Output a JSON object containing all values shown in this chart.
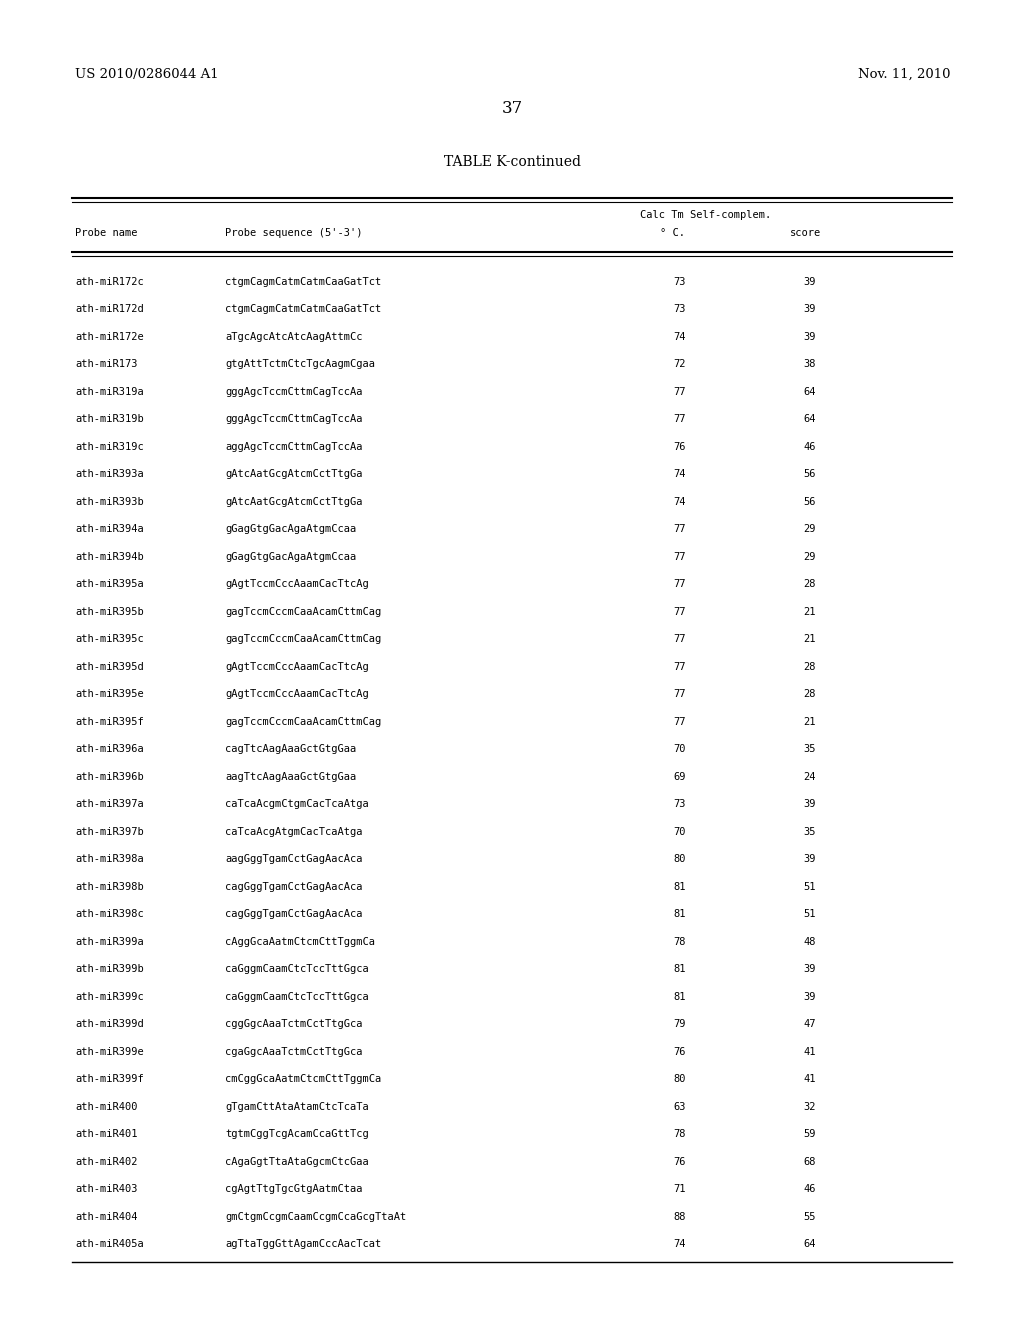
{
  "header_left": "US 2010/0286044 A1",
  "header_right": "Nov. 11, 2010",
  "page_number": "37",
  "table_title": "TABLE K-continued",
  "rows": [
    [
      "ath-miR172c",
      "ctgmCagmCatmCatmCaaGatTct",
      "73",
      "39"
    ],
    [
      "ath-miR172d",
      "ctgmCagmCatmCatmCaaGatTct",
      "73",
      "39"
    ],
    [
      "ath-miR172e",
      "aTgcAgcAtcAtcAagAttmCc",
      "74",
      "39"
    ],
    [
      "ath-miR173",
      "gtgAttTctmCtcTgcAagmCgaa",
      "72",
      "38"
    ],
    [
      "ath-miR319a",
      "gggAgcTccmCttmCagTccAa",
      "77",
      "64"
    ],
    [
      "ath-miR319b",
      "gggAgcTccmCttmCagTccAa",
      "77",
      "64"
    ],
    [
      "ath-miR319c",
      "aggAgcTccmCttmCagTccAa",
      "76",
      "46"
    ],
    [
      "ath-miR393a",
      "gAtcAatGcgAtcmCctTtgGa",
      "74",
      "56"
    ],
    [
      "ath-miR393b",
      "gAtcAatGcgAtcmCctTtgGa",
      "74",
      "56"
    ],
    [
      "ath-miR394a",
      "gGagGtgGacAgaAtgmCcaa",
      "77",
      "29"
    ],
    [
      "ath-miR394b",
      "gGagGtgGacAgaAtgmCcaa",
      "77",
      "29"
    ],
    [
      "ath-miR395a",
      "gAgtTccmCccAaamCacTtcAg",
      "77",
      "28"
    ],
    [
      "ath-miR395b",
      "gagTccmCccmCaaAcamCttmCag",
      "77",
      "21"
    ],
    [
      "ath-miR395c",
      "gagTccmCccmCaaAcamCttmCag",
      "77",
      "21"
    ],
    [
      "ath-miR395d",
      "gAgtTccmCccAaamCacTtcAg",
      "77",
      "28"
    ],
    [
      "ath-miR395e",
      "gAgtTccmCccAaamCacTtcAg",
      "77",
      "28"
    ],
    [
      "ath-miR395f",
      "gagTccmCccmCaaAcamCttmCag",
      "77",
      "21"
    ],
    [
      "ath-miR396a",
      "cagTtcAagAaaGctGtgGaa",
      "70",
      "35"
    ],
    [
      "ath-miR396b",
      "aagTtcAagAaaGctGtgGaa",
      "69",
      "24"
    ],
    [
      "ath-miR397a",
      "caTcaAcgmCtgmCacTcaAtga",
      "73",
      "39"
    ],
    [
      "ath-miR397b",
      "caTcaAcgAtgmCacTcaAtga",
      "70",
      "35"
    ],
    [
      "ath-miR398a",
      "aagGggTgamCctGagAacAca",
      "80",
      "39"
    ],
    [
      "ath-miR398b",
      "cagGggTgamCctGagAacAca",
      "81",
      "51"
    ],
    [
      "ath-miR398c",
      "cagGggTgamCctGagAacAca",
      "81",
      "51"
    ],
    [
      "ath-miR399a",
      "cAggGcaAatmCtcmCttTggmCa",
      "78",
      "48"
    ],
    [
      "ath-miR399b",
      "caGggmCaamCtcTccTttGgca",
      "81",
      "39"
    ],
    [
      "ath-miR399c",
      "caGggmCaamCtcTccTttGgca",
      "81",
      "39"
    ],
    [
      "ath-miR399d",
      "cggGgcAaaTctmCctTtgGca",
      "79",
      "47"
    ],
    [
      "ath-miR399e",
      "cgaGgcAaaTctmCctTtgGca",
      "76",
      "41"
    ],
    [
      "ath-miR399f",
      "cmCggGcaAatmCtcmCttTggmCa",
      "80",
      "41"
    ],
    [
      "ath-miR400",
      "gTgamCttAtaAtamCtcTcaTa",
      "63",
      "32"
    ],
    [
      "ath-miR401",
      "tgtmCggTcgAcamCcaGttTcg",
      "78",
      "59"
    ],
    [
      "ath-miR402",
      "cAgaGgtTtaAtaGgcmCtcGaa",
      "76",
      "68"
    ],
    [
      "ath-miR403",
      "cgAgtTtgTgcGtgAatmCtaa",
      "71",
      "46"
    ],
    [
      "ath-miR404",
      "gmCtgmCcgmCaamCcgmCcaGcgTtaAt",
      "88",
      "55"
    ],
    [
      "ath-miR405a",
      "agTtaTggGttAgamCccAacTcat",
      "74",
      "64"
    ]
  ],
  "bg_color": "#ffffff",
  "text_color": "#000000"
}
